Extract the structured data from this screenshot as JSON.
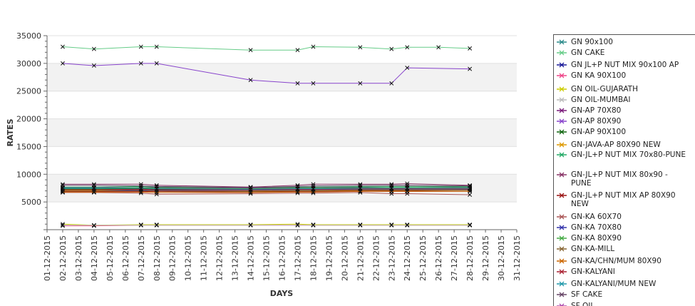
{
  "chart_data": {
    "type": "line",
    "xlabel": "DAYS",
    "ylabel": "RATES",
    "x_categories": [
      "01-12-2015",
      "02-12-2015",
      "03-12-2015",
      "04-12-2015",
      "05-12-2015",
      "06-12-2015",
      "07-12-2015",
      "08-12-2015",
      "09-12-2015",
      "10-12-2015",
      "11-12-2015",
      "12-12-2015",
      "13-12-2015",
      "14-12-2015",
      "15-12-2015",
      "16-12-2015",
      "17-12-2015",
      "18-12-2015",
      "19-12-2015",
      "20-12-2015",
      "21-12-2015",
      "22-12-2015",
      "23-12-2015",
      "24-12-2015",
      "25-12-2015",
      "26-12-2015",
      "27-12-2015",
      "28-12-2015",
      "29-12-2015",
      "30-12-2015",
      "31-12-2015"
    ],
    "y_ticks": [
      5000,
      10000,
      15000,
      20000,
      25000,
      30000,
      35000
    ],
    "ylim": [
      0,
      35000
    ],
    "legend_position": "right",
    "series": [
      {
        "name": "GN 90x100",
        "color": "#2a8a8a",
        "points": [
          [
            "02-12-2015",
            7400
          ],
          [
            "04-12-2015",
            7400
          ],
          [
            "07-12-2015",
            7500
          ],
          [
            "08-12-2015",
            7400
          ],
          [
            "14-12-2015",
            7300
          ],
          [
            "17-12-2015",
            7400
          ],
          [
            "18-12-2015",
            7400
          ],
          [
            "21-12-2015",
            7500
          ],
          [
            "23-12-2015",
            7500
          ],
          [
            "24-12-2015",
            7500
          ],
          [
            "28-12-2015",
            7500
          ]
        ]
      },
      {
        "name": "GN CAKE",
        "color": "#66cc88",
        "points": [
          [
            "02-12-2015",
            33000
          ],
          [
            "04-12-2015",
            32600
          ],
          [
            "07-12-2015",
            33000
          ],
          [
            "08-12-2015",
            33000
          ],
          [
            "14-12-2015",
            32400
          ],
          [
            "17-12-2015",
            32400
          ],
          [
            "18-12-2015",
            33000
          ],
          [
            "21-12-2015",
            32900
          ],
          [
            "23-12-2015",
            32600
          ],
          [
            "24-12-2015",
            32900
          ],
          [
            "26-12-2015",
            32900
          ],
          [
            "28-12-2015",
            32700
          ]
        ]
      },
      {
        "name": "GN JL+P NUT MIX 90x100 AP",
        "color": "#1a1a99",
        "points": [
          [
            "02-12-2015",
            7000
          ],
          [
            "04-12-2015",
            7000
          ],
          [
            "07-12-2015",
            7000
          ],
          [
            "08-12-2015",
            7000
          ],
          [
            "14-12-2015",
            6900
          ],
          [
            "17-12-2015",
            7000
          ],
          [
            "18-12-2015",
            7000
          ],
          [
            "21-12-2015",
            7200
          ],
          [
            "23-12-2015",
            7200
          ],
          [
            "24-12-2015",
            7200
          ],
          [
            "28-12-2015",
            7300
          ]
        ]
      },
      {
        "name": "GN KA 90X100",
        "color": "#ee4488",
        "points": [
          [
            "02-12-2015",
            700
          ],
          [
            "04-12-2015",
            700
          ],
          [
            "07-12-2015",
            800
          ],
          [
            "08-12-2015",
            800
          ],
          [
            "14-12-2015",
            800
          ],
          [
            "17-12-2015",
            800
          ],
          [
            "18-12-2015",
            800
          ],
          [
            "21-12-2015",
            800
          ],
          [
            "23-12-2015",
            800
          ],
          [
            "24-12-2015",
            800
          ],
          [
            "28-12-2015",
            800
          ]
        ]
      },
      {
        "name": "GN OIL-GUJARATH",
        "color": "#cccc00",
        "points": [
          [
            "02-12-2015",
            1000
          ],
          [
            "04-12-2015",
            800
          ],
          [
            "07-12-2015",
            900
          ],
          [
            "08-12-2015",
            900
          ],
          [
            "14-12-2015",
            900
          ],
          [
            "17-12-2015",
            1000
          ],
          [
            "18-12-2015",
            900
          ],
          [
            "21-12-2015",
            900
          ],
          [
            "23-12-2015",
            900
          ],
          [
            "24-12-2015",
            900
          ],
          [
            "28-12-2015",
            900
          ]
        ]
      },
      {
        "name": "GN OIL-MUMBAI",
        "color": "#bbbbbb",
        "points": [
          [
            "02-12-2015",
            800
          ],
          [
            "04-12-2015",
            800
          ],
          [
            "07-12-2015",
            800
          ],
          [
            "08-12-2015",
            800
          ],
          [
            "14-12-2015",
            800
          ],
          [
            "17-12-2015",
            800
          ],
          [
            "18-12-2015",
            800
          ],
          [
            "21-12-2015",
            800
          ],
          [
            "23-12-2015",
            800
          ],
          [
            "24-12-2015",
            800
          ],
          [
            "28-12-2015",
            800
          ]
        ]
      },
      {
        "name": "GN-AP 70X80",
        "color": "#7a1a7a",
        "points": [
          [
            "02-12-2015",
            7600
          ],
          [
            "04-12-2015",
            7600
          ],
          [
            "07-12-2015",
            7600
          ],
          [
            "08-12-2015",
            7600
          ],
          [
            "14-12-2015",
            7500
          ],
          [
            "17-12-2015",
            7600
          ],
          [
            "18-12-2015",
            7600
          ],
          [
            "21-12-2015",
            7700
          ],
          [
            "23-12-2015",
            7800
          ],
          [
            "24-12-2015",
            7800
          ],
          [
            "28-12-2015",
            7700
          ]
        ]
      },
      {
        "name": "GN-AP 80X90",
        "color": "#8844cc",
        "points": [
          [
            "02-12-2015",
            30000
          ],
          [
            "04-12-2015",
            29600
          ],
          [
            "07-12-2015",
            30000
          ],
          [
            "08-12-2015",
            30000
          ],
          [
            "14-12-2015",
            27000
          ],
          [
            "17-12-2015",
            26400
          ],
          [
            "18-12-2015",
            26400
          ],
          [
            "21-12-2015",
            26400
          ],
          [
            "23-12-2015",
            26400
          ],
          [
            "24-12-2015",
            29200
          ],
          [
            "28-12-2015",
            29000
          ]
        ]
      },
      {
        "name": "GN-AP 90X100",
        "color": "#116611",
        "points": [
          [
            "02-12-2015",
            7300
          ],
          [
            "04-12-2015",
            7300
          ],
          [
            "07-12-2015",
            7400
          ],
          [
            "08-12-2015",
            7300
          ],
          [
            "14-12-2015",
            7200
          ],
          [
            "17-12-2015",
            7300
          ],
          [
            "18-12-2015",
            7300
          ],
          [
            "21-12-2015",
            7400
          ],
          [
            "23-12-2015",
            7400
          ],
          [
            "24-12-2015",
            7400
          ],
          [
            "28-12-2015",
            7400
          ]
        ]
      },
      {
        "name": "GN-JAVA-AP 80X90 NEW",
        "color": "#dd9900",
        "points": [
          [
            "02-12-2015",
            7100
          ],
          [
            "04-12-2015",
            7100
          ],
          [
            "07-12-2015",
            7100
          ],
          [
            "08-12-2015",
            7000
          ],
          [
            "14-12-2015",
            7000
          ],
          [
            "17-12-2015",
            7100
          ],
          [
            "18-12-2015",
            7100
          ],
          [
            "21-12-2015",
            7200
          ],
          [
            "23-12-2015",
            7200
          ],
          [
            "24-12-2015",
            7200
          ],
          [
            "28-12-2015",
            7200
          ]
        ]
      },
      {
        "name": "GN-JL+P NUT MIX 70x80-PUNE",
        "color": "#22aa66",
        "points": [
          [
            "02-12-2015",
            7700
          ],
          [
            "04-12-2015",
            7700
          ],
          [
            "07-12-2015",
            7800
          ],
          [
            "08-12-2015",
            7700
          ],
          [
            "14-12-2015",
            7600
          ],
          [
            "17-12-2015",
            7700
          ],
          [
            "18-12-2015",
            7700
          ],
          [
            "21-12-2015",
            7800
          ],
          [
            "23-12-2015",
            7800
          ],
          [
            "24-12-2015",
            7800
          ],
          [
            "28-12-2015",
            7800
          ]
        ]
      },
      {
        "name": "GN-JL+P NUT MIX 80x90 - PUNE",
        "color": "#883366",
        "points": [
          [
            "02-12-2015",
            8200
          ],
          [
            "04-12-2015",
            8200
          ],
          [
            "07-12-2015",
            8200
          ],
          [
            "08-12-2015",
            8000
          ],
          [
            "14-12-2015",
            7700
          ],
          [
            "17-12-2015",
            8000
          ],
          [
            "18-12-2015",
            8200
          ],
          [
            "21-12-2015",
            8200
          ],
          [
            "23-12-2015",
            8200
          ],
          [
            "24-12-2015",
            8300
          ],
          [
            "28-12-2015",
            8000
          ]
        ]
      },
      {
        "name": "GN-JL+P NUT MIX AP 80X90 NEW",
        "color": "#991111",
        "points": [
          [
            "02-12-2015",
            6900
          ],
          [
            "04-12-2015",
            6900
          ],
          [
            "07-12-2015",
            6900
          ],
          [
            "08-12-2015",
            6900
          ],
          [
            "14-12-2015",
            6800
          ],
          [
            "17-12-2015",
            6900
          ],
          [
            "18-12-2015",
            6900
          ],
          [
            "21-12-2015",
            7000
          ],
          [
            "23-12-2015",
            7000
          ],
          [
            "24-12-2015",
            7000
          ],
          [
            "28-12-2015",
            7100
          ]
        ]
      },
      {
        "name": "GN-KA 60X70",
        "color": "#aa5555",
        "points": [
          [
            "02-12-2015",
            6700
          ],
          [
            "04-12-2015",
            6700
          ],
          [
            "07-12-2015",
            6600
          ],
          [
            "08-12-2015",
            6400
          ],
          [
            "14-12-2015",
            6500
          ],
          [
            "17-12-2015",
            6600
          ],
          [
            "18-12-2015",
            6600
          ],
          [
            "21-12-2015",
            6700
          ],
          [
            "23-12-2015",
            6500
          ],
          [
            "24-12-2015",
            6500
          ],
          [
            "28-12-2015",
            6300
          ]
        ]
      },
      {
        "name": "GN-KA 70X80",
        "color": "#3333aa",
        "points": [
          [
            "02-12-2015",
            7200
          ],
          [
            "04-12-2015",
            7200
          ],
          [
            "07-12-2015",
            7200
          ],
          [
            "08-12-2015",
            7100
          ],
          [
            "14-12-2015",
            7100
          ],
          [
            "17-12-2015",
            7200
          ],
          [
            "18-12-2015",
            7200
          ],
          [
            "21-12-2015",
            7300
          ],
          [
            "23-12-2015",
            7300
          ],
          [
            "24-12-2015",
            7300
          ],
          [
            "28-12-2015",
            7300
          ]
        ]
      },
      {
        "name": "GN-KA 80X90",
        "color": "#44aa44",
        "points": [
          [
            "02-12-2015",
            7500
          ],
          [
            "04-12-2015",
            7500
          ],
          [
            "07-12-2015",
            7600
          ],
          [
            "08-12-2015",
            7500
          ],
          [
            "14-12-2015",
            7400
          ],
          [
            "17-12-2015",
            7500
          ],
          [
            "18-12-2015",
            7500
          ],
          [
            "21-12-2015",
            7600
          ],
          [
            "23-12-2015",
            7600
          ],
          [
            "24-12-2015",
            7600
          ],
          [
            "28-12-2015",
            7600
          ]
        ]
      },
      {
        "name": "GN-KA-MILL",
        "color": "#886633",
        "points": [
          [
            "02-12-2015",
            7000
          ],
          [
            "04-12-2015",
            7000
          ],
          [
            "07-12-2015",
            7100
          ],
          [
            "08-12-2015",
            7000
          ],
          [
            "14-12-2015",
            6900
          ],
          [
            "17-12-2015",
            7000
          ],
          [
            "18-12-2015",
            7000
          ],
          [
            "21-12-2015",
            7100
          ],
          [
            "23-12-2015",
            7100
          ],
          [
            "24-12-2015",
            7100
          ],
          [
            "28-12-2015",
            7100
          ]
        ]
      },
      {
        "name": "GN-KA/CHN/MUM 80X90",
        "color": "#cc6600",
        "points": [
          [
            "02-12-2015",
            6800
          ],
          [
            "04-12-2015",
            6800
          ],
          [
            "07-12-2015",
            6800
          ],
          [
            "08-12-2015",
            6700
          ],
          [
            "14-12-2015",
            6700
          ],
          [
            "17-12-2015",
            6800
          ],
          [
            "18-12-2015",
            6800
          ],
          [
            "21-12-2015",
            6900
          ],
          [
            "23-12-2015",
            6900
          ],
          [
            "24-12-2015",
            6900
          ],
          [
            "28-12-2015",
            6900
          ]
        ]
      },
      {
        "name": "GN-KALYANI",
        "color": "#aa2233",
        "points": [
          [
            "02-12-2015",
            7200
          ],
          [
            "04-12-2015",
            7200
          ],
          [
            "07-12-2015",
            7300
          ],
          [
            "08-12-2015",
            7200
          ],
          [
            "14-12-2015",
            7200
          ],
          [
            "17-12-2015",
            7300
          ],
          [
            "18-12-2015",
            7300
          ],
          [
            "21-12-2015",
            7400
          ],
          [
            "23-12-2015",
            7400
          ],
          [
            "24-12-2015",
            7400
          ],
          [
            "28-12-2015",
            7400
          ]
        ]
      },
      {
        "name": "GN-KALYANI/MUM NEW",
        "color": "#2299aa",
        "points": [
          [
            "02-12-2015",
            7500
          ],
          [
            "04-12-2015",
            7500
          ],
          [
            "07-12-2015",
            7500
          ],
          [
            "08-12-2015",
            7400
          ],
          [
            "14-12-2015",
            7300
          ],
          [
            "17-12-2015",
            7400
          ],
          [
            "18-12-2015",
            7400
          ],
          [
            "21-12-2015",
            7500
          ],
          [
            "23-12-2015",
            7500
          ],
          [
            "24-12-2015",
            7500
          ],
          [
            "28-12-2015",
            7500
          ]
        ]
      },
      {
        "name": "SF CAKE",
        "color": "#664466",
        "points": [
          [
            "02-12-2015",
            8000
          ],
          [
            "04-12-2015",
            8000
          ],
          [
            "07-12-2015",
            7900
          ],
          [
            "08-12-2015",
            7800
          ],
          [
            "14-12-2015",
            7600
          ],
          [
            "17-12-2015",
            7800
          ],
          [
            "18-12-2015",
            7900
          ],
          [
            "21-12-2015",
            8000
          ],
          [
            "23-12-2015",
            8000
          ],
          [
            "24-12-2015",
            8000
          ],
          [
            "28-12-2015",
            7900
          ]
        ]
      },
      {
        "name": "SF OIL",
        "color": "#aa44aa",
        "points": []
      }
    ]
  }
}
